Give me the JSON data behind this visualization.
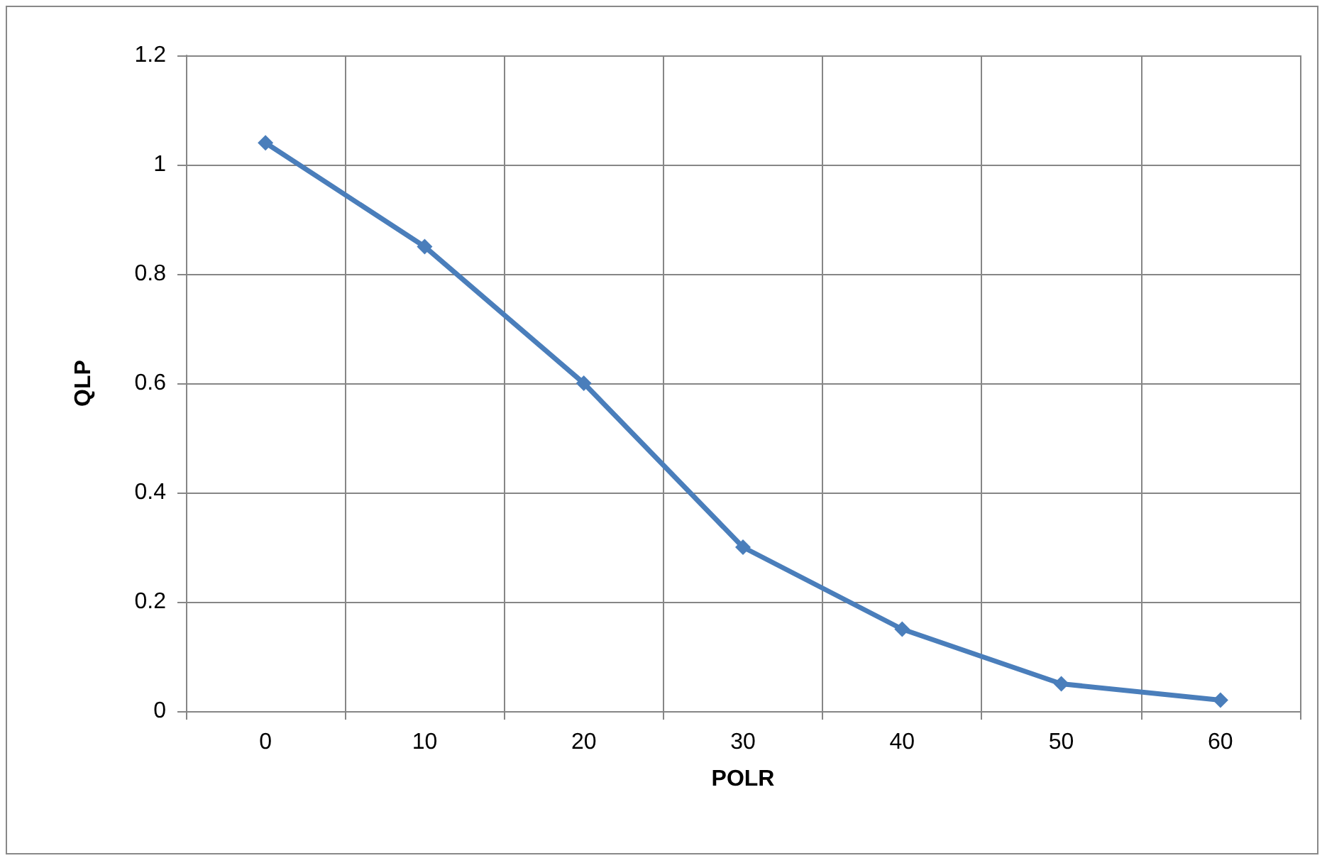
{
  "chart_data": {
    "type": "line",
    "xlabel": "POLR",
    "ylabel": "QLP",
    "categories": [
      "0",
      "10",
      "20",
      "30",
      "40",
      "50",
      "60"
    ],
    "series": [
      {
        "color": "#4a7ebb",
        "values": [
          1.04,
          0.85,
          0.6,
          0.3,
          0.15,
          0.05,
          0.02
        ]
      }
    ],
    "ylim": [
      0,
      1.2
    ],
    "yticks": [
      0,
      0.2,
      0.4,
      0.6,
      0.8,
      1,
      1.2
    ],
    "grid": true,
    "marker": "diamond",
    "line_style": "solid"
  }
}
